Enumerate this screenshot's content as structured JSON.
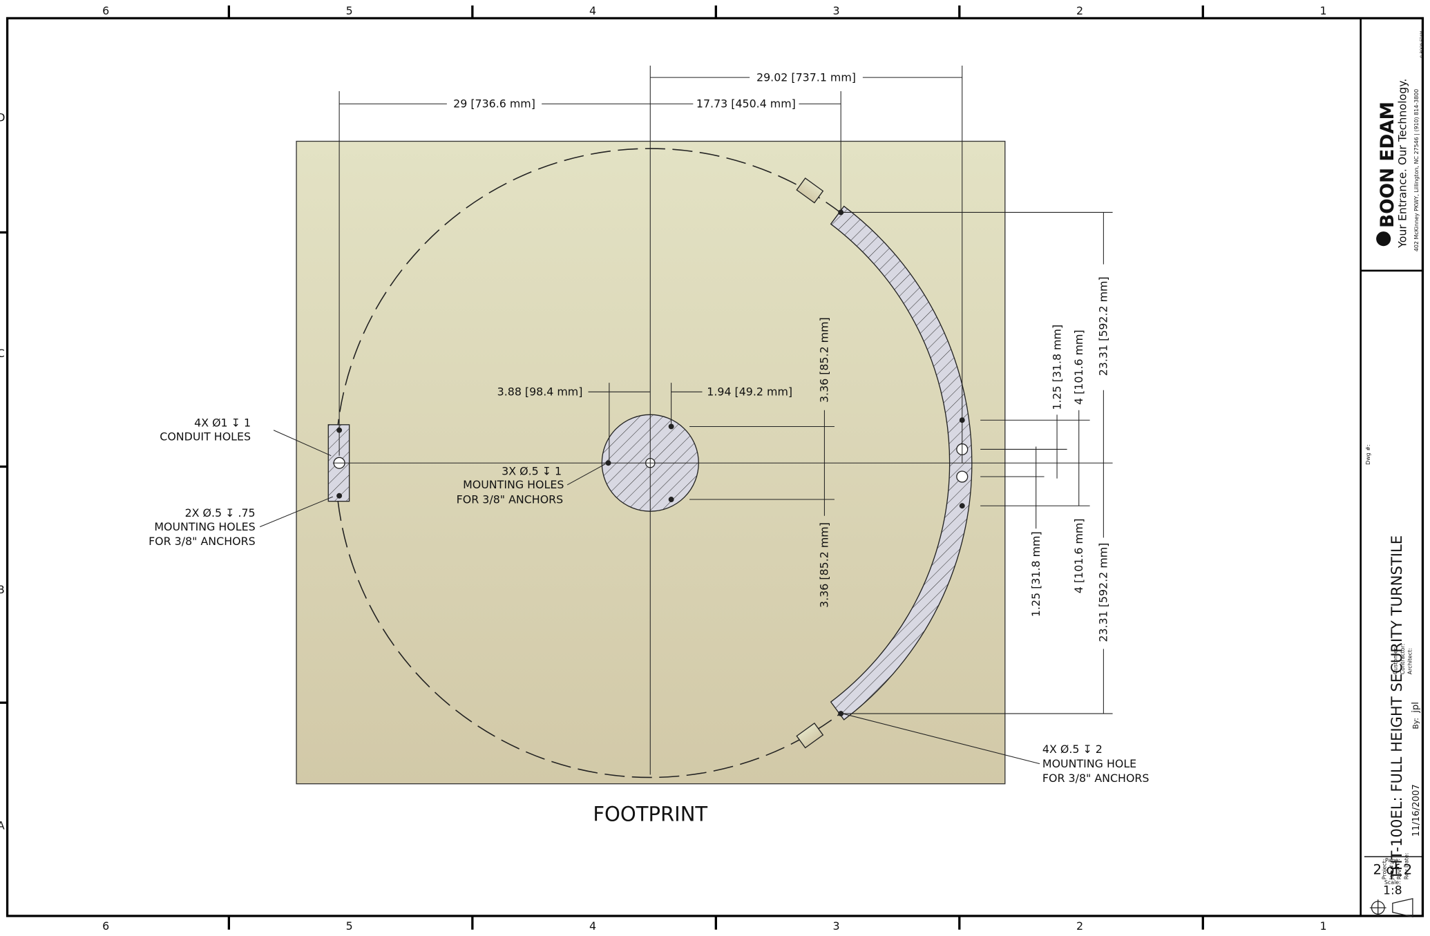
{
  "zones": {
    "columns": [
      "6",
      "5",
      "4",
      "3",
      "2",
      "1"
    ],
    "rows": [
      "D",
      "C",
      "B",
      "A"
    ]
  },
  "drawing": {
    "view_title": "FOOTPRINT",
    "dimensions": [
      "29.02 [737.1 mm]",
      "29 [736.6 mm]",
      "17.73 [450.4 mm]",
      "3.88 [98.4 mm]",
      "1.94 [49.2 mm]",
      "3.36 [85.2 mm]",
      "3.36 [85.2 mm]",
      "1.25 [31.8 mm]",
      "4 [101.6 mm]",
      "23.31 [592.2 mm]",
      "1.25 [31.8 mm]",
      "4 [101.6 mm]",
      "23.31 [592.2 mm]"
    ],
    "notes": [
      {
        "lines": [
          "4X  Ø1 ↧ 1",
          "CONDUIT HOLES"
        ]
      },
      {
        "lines": [
          "2X  Ø.5 ↧ .75",
          "MOUNTING HOLES",
          "FOR 3/8\" ANCHORS"
        ]
      },
      {
        "lines": [
          "3X  Ø.5 ↧ 1",
          "MOUNTING HOLES",
          "FOR 3/8\" ANCHORS"
        ]
      },
      {
        "lines": [
          "4X  Ø.5 ↧ 2",
          "MOUNTING HOLE",
          "FOR 3/8\" ANCHORS"
        ]
      }
    ]
  },
  "title_block": {
    "company": "BOON EDAM",
    "tagline": "Your Entrance. Our Technology.",
    "address": "402 McKinney PKWY, Lillington, NC 27546 | (910) 814-3800",
    "copyright": "© BOON EDAM",
    "dwg_label": "Dwg #:",
    "title": "THT-100EL: FULL HEIGHT SECURITY TURNSTILE",
    "fields": [
      "Project:",
      "Job #:",
      "Rev:",
      "Rev Date:"
    ],
    "rev_date": "11/16/2007",
    "by_label": "By:",
    "by": "jpl",
    "parties": [
      "Customer:",
      "Contractor:",
      "Architect:"
    ],
    "page_label": "Page:",
    "page": "2 of 2",
    "scale_label": "Scale:",
    "scale": "1:8"
  }
}
